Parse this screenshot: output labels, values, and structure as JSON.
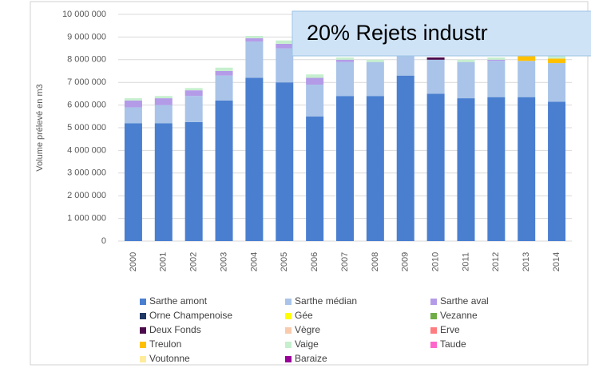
{
  "chart_data": {
    "type": "stacked_bar",
    "annotation": "20% Rejets industr",
    "y_label": "Volume prélevé en m3",
    "categories": [
      "2000",
      "2001",
      "2002",
      "2003",
      "2004",
      "2005",
      "2006",
      "2007",
      "2008",
      "2009",
      "2010",
      "2011",
      "2012",
      "2013",
      "2014"
    ],
    "ylim": [
      0,
      10000000
    ],
    "yticks": [
      0,
      {
        "value": 1000000,
        "label": "1 000 000"
      },
      {
        "value": 2000000,
        "label": "2 000 000"
      },
      {
        "value": 3000000,
        "label": "3 000 000"
      },
      {
        "value": 4000000,
        "label": "4 000 000"
      },
      {
        "value": 5000000,
        "label": "5 000 000"
      },
      {
        "value": 6000000,
        "label": "6 000 000"
      },
      {
        "value": 7000000,
        "label": "7 000 000"
      },
      {
        "value": 8000000,
        "label": "8 000 000"
      },
      {
        "value": 9000000,
        "label": "9 000 000"
      },
      {
        "value": 10000000,
        "label": "10 000 000"
      }
    ],
    "grid": true,
    "series": [
      {
        "name": "Sarthe amont",
        "color": "#4a7fd0",
        "values": [
          5200000,
          5200000,
          5250000,
          6200000,
          7200000,
          7000000,
          5500000,
          6400000,
          6400000,
          7300000,
          6500000,
          6300000,
          6350000,
          6350000,
          6150000
        ]
      },
      {
        "name": "Sarthe médian",
        "color": "#a9c4e8",
        "values": [
          700000,
          800000,
          1150000,
          1100000,
          1600000,
          1500000,
          1400000,
          1500000,
          1500000,
          900000,
          1500000,
          1600000,
          1600000,
          1600000,
          1700000
        ]
      },
      {
        "name": "Sarthe aval",
        "color": "#b49be8",
        "values": [
          300000,
          300000,
          250000,
          200000,
          150000,
          200000,
          300000,
          100000,
          0,
          0,
          0,
          0,
          50000,
          0,
          0
        ]
      },
      {
        "name": "Orne Champenoise",
        "color": "#1f3864",
        "values": [
          0,
          0,
          0,
          0,
          0,
          0,
          0,
          0,
          0,
          0,
          0,
          0,
          0,
          0,
          0
        ]
      },
      {
        "name": "Gée",
        "color": "#ffff00",
        "values": [
          0,
          0,
          0,
          0,
          0,
          0,
          0,
          0,
          0,
          0,
          0,
          0,
          0,
          0,
          0
        ]
      },
      {
        "name": "Vezanne",
        "color": "#70ad47",
        "values": [
          0,
          0,
          0,
          0,
          0,
          0,
          0,
          0,
          0,
          0,
          0,
          0,
          0,
          0,
          0
        ]
      },
      {
        "name": "Deux Fonds",
        "color": "#4b0a4b",
        "values": [
          0,
          0,
          0,
          0,
          0,
          0,
          0,
          0,
          0,
          0,
          100000,
          0,
          0,
          0,
          0
        ]
      },
      {
        "name": "Vègre",
        "color": "#f8cbad",
        "values": [
          0,
          0,
          0,
          0,
          0,
          0,
          0,
          0,
          0,
          0,
          0,
          0,
          0,
          0,
          0
        ]
      },
      {
        "name": "Erve",
        "color": "#ff7c80",
        "values": [
          0,
          0,
          0,
          0,
          0,
          0,
          0,
          0,
          0,
          0,
          0,
          0,
          0,
          0,
          0
        ]
      },
      {
        "name": "Treulon",
        "color": "#ffc000",
        "values": [
          0,
          0,
          0,
          0,
          0,
          0,
          0,
          0,
          0,
          0,
          0,
          0,
          0,
          200000,
          200000
        ]
      },
      {
        "name": "Vaige",
        "color": "#c6efce",
        "values": [
          100000,
          100000,
          100000,
          150000,
          100000,
          150000,
          150000,
          100000,
          100000,
          0,
          0,
          100000,
          100000,
          0,
          100000
        ]
      },
      {
        "name": "Taude",
        "color": "#ff66cc",
        "values": [
          0,
          0,
          0,
          0,
          0,
          0,
          0,
          0,
          0,
          0,
          0,
          0,
          0,
          0,
          0
        ]
      },
      {
        "name": "Voutonne",
        "color": "#ffeb9c",
        "values": [
          0,
          0,
          0,
          0,
          0,
          0,
          0,
          0,
          0,
          0,
          0,
          0,
          0,
          0,
          0
        ]
      },
      {
        "name": "Baraize",
        "color": "#990099",
        "values": [
          0,
          0,
          0,
          0,
          0,
          0,
          0,
          0,
          0,
          0,
          0,
          0,
          0,
          0,
          0
        ]
      }
    ]
  }
}
